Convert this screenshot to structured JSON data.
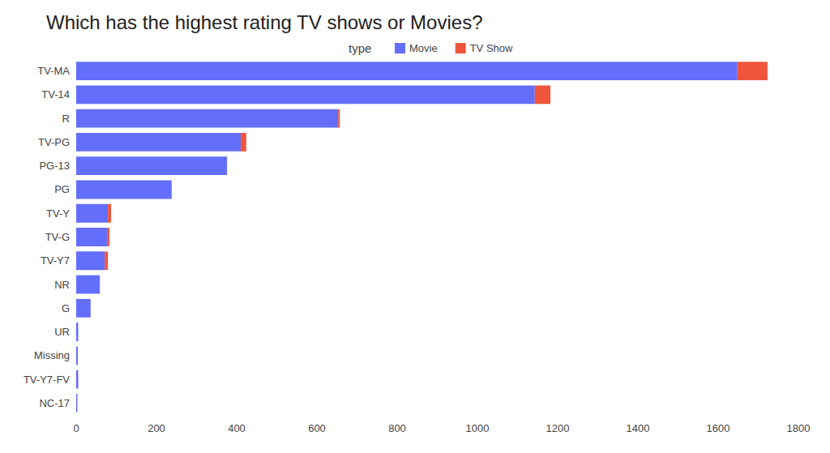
{
  "chart_data": {
    "type": "bar",
    "title": "Which has the highest rating TV shows or Movies?",
    "legend_title": "type",
    "orientation": "horizontal",
    "stacked": true,
    "legend": "top",
    "grid": false,
    "data_labels": false,
    "categories": [
      "TV-MA",
      "TV-14",
      "R",
      "TV-PG",
      "PG-13",
      "PG",
      "TV-Y",
      "TV-G",
      "TV-Y7",
      "NR",
      "G",
      "UR",
      "Missing",
      "TV-Y7-FV",
      "NC-17"
    ],
    "series": [
      {
        "name": "Movie",
        "color": "#636efa",
        "values": [
          1648,
          1143,
          653,
          410,
          376,
          238,
          79,
          77,
          71,
          59,
          36,
          5,
          4,
          5,
          3
        ]
      },
      {
        "name": "TV Show",
        "color": "#ef553b",
        "values": [
          75,
          39,
          4,
          14,
          0,
          0,
          8,
          6,
          8,
          0,
          0,
          0,
          0,
          0,
          0
        ]
      }
    ],
    "xlim": [
      0,
      1800
    ],
    "xticks": [
      0,
      200,
      400,
      600,
      800,
      1000,
      1200,
      1400,
      1600,
      1800
    ]
  }
}
